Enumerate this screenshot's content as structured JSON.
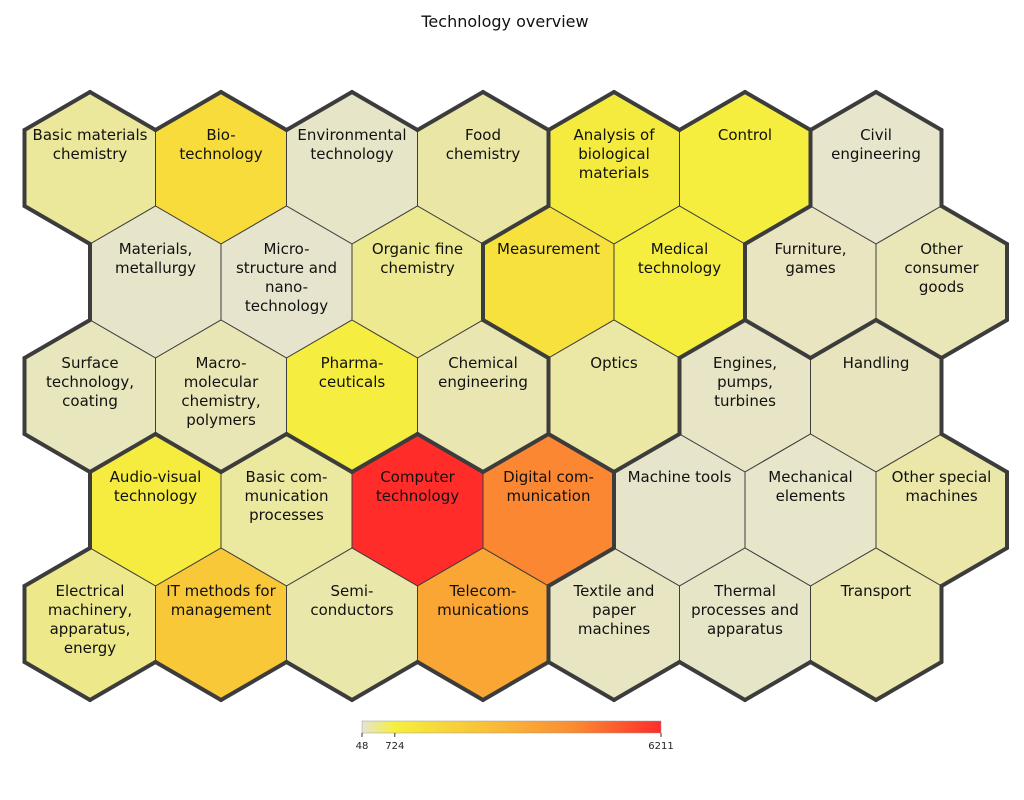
{
  "chart_data": {
    "type": "heatmap",
    "layout": "hexagonal grid",
    "title": "Technology overview",
    "colorscale": {
      "min": 48,
      "max": 6211,
      "ticks": [
        48,
        724,
        6211
      ],
      "stops": [
        {
          "value": 48,
          "color": "#e6e4d2"
        },
        {
          "value": 724,
          "color": "#f5ef3f"
        },
        {
          "value": 2600,
          "color": "#f9c038"
        },
        {
          "value": 4400,
          "color": "#fb8c32"
        },
        {
          "value": 6211,
          "color": "#ff2c2a"
        }
      ]
    },
    "cells": [
      {
        "lines": [
          "Basic materials",
          "chemistry"
        ],
        "row": 0,
        "col": 0,
        "value": 300,
        "group": 0
      },
      {
        "lines": [
          "Bio-",
          "technology"
        ],
        "row": 0,
        "col": 1,
        "value": 1500,
        "group": 0
      },
      {
        "lines": [
          "Environmental",
          "technology"
        ],
        "row": 0,
        "col": 2,
        "value": 100,
        "group": 0
      },
      {
        "lines": [
          "Food",
          "chemistry"
        ],
        "row": 0,
        "col": 3,
        "value": 250,
        "group": 0
      },
      {
        "lines": [
          "Analysis of",
          "biological",
          "materials"
        ],
        "row": 0,
        "col": 4,
        "value": 900,
        "group": 1
      },
      {
        "lines": [
          "Control"
        ],
        "row": 0,
        "col": 5,
        "value": 780,
        "group": 1
      },
      {
        "lines": [
          "Civil",
          "engineering"
        ],
        "row": 0,
        "col": 6,
        "value": 80,
        "group": 3
      },
      {
        "lines": [
          "Materials,",
          "metallurgy"
        ],
        "row": 1,
        "col": 0,
        "value": 90,
        "group": 0
      },
      {
        "lines": [
          "Micro-",
          "structure and",
          "nano-",
          "technology"
        ],
        "row": 1,
        "col": 1,
        "value": 70,
        "group": 0
      },
      {
        "lines": [
          "Organic fine",
          "chemistry"
        ],
        "row": 1,
        "col": 2,
        "value": 350,
        "group": 0
      },
      {
        "lines": [
          "Measurement"
        ],
        "row": 1,
        "col": 3,
        "value": 1300,
        "group": 1
      },
      {
        "lines": [
          "Medical",
          "technology"
        ],
        "row": 1,
        "col": 4,
        "value": 760,
        "group": 1
      },
      {
        "lines": [
          "Furniture,",
          "games"
        ],
        "row": 1,
        "col": 5,
        "value": 130,
        "group": 3
      },
      {
        "lines": [
          "Other",
          "consumer",
          "goods"
        ],
        "row": 1,
        "col": 6,
        "value": 170,
        "group": 3
      },
      {
        "lines": [
          "Surface",
          "technology,",
          "coating"
        ],
        "row": 2,
        "col": 0,
        "value": 150,
        "group": 0
      },
      {
        "lines": [
          "Macro-",
          "molecular",
          "chemistry,",
          "polymers"
        ],
        "row": 2,
        "col": 1,
        "value": 180,
        "group": 0
      },
      {
        "lines": [
          "Pharma-",
          "ceuticals"
        ],
        "row": 2,
        "col": 2,
        "value": 800,
        "group": 0
      },
      {
        "lines": [
          "Chemical",
          "engineering"
        ],
        "row": 2,
        "col": 3,
        "value": 200,
        "group": 0
      },
      {
        "lines": [
          "Optics"
        ],
        "row": 2,
        "col": 4,
        "value": 260,
        "group": 1
      },
      {
        "lines": [
          "Engines,",
          "pumps,",
          "turbines"
        ],
        "row": 2,
        "col": 5,
        "value": 110,
        "group": 2
      },
      {
        "lines": [
          "Handling"
        ],
        "row": 2,
        "col": 6,
        "value": 140,
        "group": 2
      },
      {
        "lines": [
          "Audio-visual",
          "technology"
        ],
        "row": 3,
        "col": 0,
        "value": 830,
        "group": 4
      },
      {
        "lines": [
          "Basic com-",
          "munication",
          "processes"
        ],
        "row": 3,
        "col": 1,
        "value": 280,
        "group": 4
      },
      {
        "lines": [
          "Computer",
          "technology"
        ],
        "row": 3,
        "col": 2,
        "value": 6211,
        "group": 4
      },
      {
        "lines": [
          "Digital com-",
          "munication"
        ],
        "row": 3,
        "col": 3,
        "value": 4500,
        "group": 4
      },
      {
        "lines": [
          "Machine tools"
        ],
        "row": 3,
        "col": 4,
        "value": 75,
        "group": 2
      },
      {
        "lines": [
          "Mechanical",
          "elements"
        ],
        "row": 3,
        "col": 5,
        "value": 85,
        "group": 2
      },
      {
        "lines": [
          "Other special",
          "machines"
        ],
        "row": 3,
        "col": 6,
        "value": 240,
        "group": 2
      },
      {
        "lines": [
          "Electrical",
          "machinery,",
          "apparatus,",
          "energy"
        ],
        "row": 4,
        "col": 0,
        "value": 380,
        "group": 4
      },
      {
        "lines": [
          "IT methods for",
          "management"
        ],
        "row": 4,
        "col": 1,
        "value": 2300,
        "group": 4
      },
      {
        "lines": [
          "Semi-",
          "conductors"
        ],
        "row": 4,
        "col": 2,
        "value": 230,
        "group": 4
      },
      {
        "lines": [
          "Telecom-",
          "munications"
        ],
        "row": 4,
        "col": 3,
        "value": 3500,
        "group": 4
      },
      {
        "lines": [
          "Textile and",
          "paper",
          "machines"
        ],
        "row": 4,
        "col": 4,
        "value": 120,
        "group": 2
      },
      {
        "lines": [
          "Thermal",
          "processes and",
          "apparatus"
        ],
        "row": 4,
        "col": 5,
        "value": 95,
        "group": 2
      },
      {
        "lines": [
          "Transport"
        ],
        "row": 4,
        "col": 6,
        "value": 210,
        "group": 2
      }
    ]
  }
}
